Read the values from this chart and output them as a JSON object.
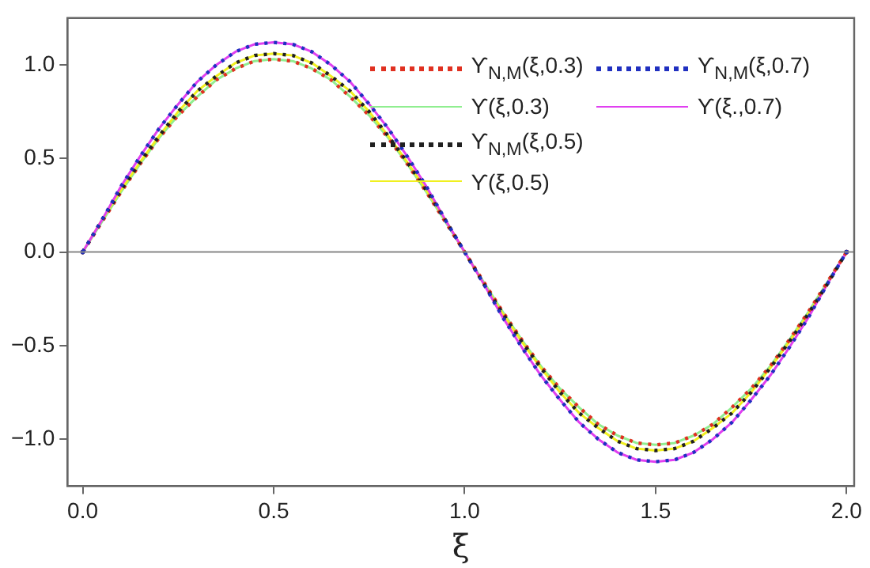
{
  "chart_data": {
    "type": "line",
    "xlabel": "ξ",
    "x": [
      0,
      0.05,
      0.1,
      0.15,
      0.2,
      0.25,
      0.3,
      0.35,
      0.4,
      0.45,
      0.5,
      0.55,
      0.6,
      0.65,
      0.7,
      0.75,
      0.8,
      0.85,
      0.9,
      0.95,
      1,
      1.05,
      1.1,
      1.15,
      1.2,
      1.25,
      1.3,
      1.35,
      1.4,
      1.45,
      1.5,
      1.55,
      1.6,
      1.65,
      1.7,
      1.75,
      1.8,
      1.85,
      1.9,
      1.95,
      2
    ],
    "series": [
      {
        "name": "ϒ$_{N,M}$(ξ,0.3)",
        "color": "#e03020",
        "line_style": "dotted",
        "values": [
          0,
          0.16,
          0.32,
          0.47,
          0.61,
          0.73,
          0.83,
          0.92,
          0.98,
          1.02,
          1.03,
          1.02,
          0.98,
          0.92,
          0.83,
          0.73,
          0.61,
          0.47,
          0.32,
          0.16,
          0,
          -0.16,
          -0.32,
          -0.47,
          -0.61,
          -0.73,
          -0.83,
          -0.92,
          -0.98,
          -1.02,
          -1.03,
          -1.02,
          -0.98,
          -0.92,
          -0.83,
          -0.73,
          -0.61,
          -0.47,
          -0.32,
          -0.16,
          0
        ]
      },
      {
        "name": "ϒ(ξ,0.3)",
        "color": "#90ee90",
        "line_style": "solid",
        "values": [
          0,
          0.16,
          0.32,
          0.47,
          0.61,
          0.73,
          0.83,
          0.92,
          0.98,
          1.02,
          1.03,
          1.02,
          0.98,
          0.92,
          0.83,
          0.73,
          0.61,
          0.47,
          0.32,
          0.16,
          0,
          -0.16,
          -0.32,
          -0.47,
          -0.61,
          -0.73,
          -0.83,
          -0.92,
          -0.98,
          -1.02,
          -1.03,
          -1.02,
          -0.98,
          -0.92,
          -0.83,
          -0.73,
          -0.61,
          -0.47,
          -0.32,
          -0.16,
          0
        ]
      },
      {
        "name": "ϒ$_{N,M}$(ξ,0.5)",
        "color": "#202020",
        "line_style": "dotted",
        "values": [
          0,
          0.17,
          0.33,
          0.48,
          0.62,
          0.75,
          0.86,
          0.94,
          1.01,
          1.05,
          1.06,
          1.05,
          1.01,
          0.94,
          0.86,
          0.75,
          0.62,
          0.48,
          0.33,
          0.17,
          0,
          -0.17,
          -0.33,
          -0.48,
          -0.62,
          -0.75,
          -0.86,
          -0.94,
          -1.01,
          -1.05,
          -1.06,
          -1.05,
          -1.01,
          -0.94,
          -0.86,
          -0.75,
          -0.62,
          -0.48,
          -0.33,
          -0.17,
          0
        ]
      },
      {
        "name": "ϒ(ξ,0.5)",
        "color": "#f0f020",
        "line_style": "solid",
        "values": [
          0,
          0.17,
          0.33,
          0.48,
          0.62,
          0.75,
          0.86,
          0.94,
          1.01,
          1.05,
          1.06,
          1.05,
          1.01,
          0.94,
          0.86,
          0.75,
          0.62,
          0.48,
          0.33,
          0.17,
          0,
          -0.17,
          -0.33,
          -0.48,
          -0.62,
          -0.75,
          -0.86,
          -0.94,
          -1.01,
          -1.05,
          -1.06,
          -1.05,
          -1.01,
          -0.94,
          -0.86,
          -0.75,
          -0.62,
          -0.48,
          -0.33,
          -0.17,
          0
        ]
      },
      {
        "name": "ϒ$_{N,M}$(ξ,0.7)",
        "color": "#2030c0",
        "line_style": "dotted",
        "values": [
          0,
          0.17,
          0.35,
          0.51,
          0.66,
          0.79,
          0.91,
          1.0,
          1.07,
          1.11,
          1.12,
          1.11,
          1.07,
          1.0,
          0.91,
          0.79,
          0.66,
          0.51,
          0.35,
          0.17,
          0,
          -0.17,
          -0.35,
          -0.51,
          -0.66,
          -0.79,
          -0.91,
          -1.0,
          -1.07,
          -1.11,
          -1.12,
          -1.11,
          -1.07,
          -1.0,
          -0.91,
          -0.79,
          -0.66,
          -0.51,
          -0.35,
          -0.17,
          0
        ]
      },
      {
        "name": "ϒ(ξ.,0.7)",
        "color": "#e040f0",
        "line_style": "solid",
        "values": [
          0,
          0.17,
          0.35,
          0.51,
          0.66,
          0.79,
          0.91,
          1.0,
          1.07,
          1.11,
          1.12,
          1.11,
          1.07,
          1.0,
          0.91,
          0.79,
          0.66,
          0.51,
          0.35,
          0.17,
          0,
          -0.17,
          -0.35,
          -0.51,
          -0.66,
          -0.79,
          -0.91,
          -1.0,
          -1.07,
          -1.11,
          -1.12,
          -1.11,
          -1.07,
          -1.0,
          -0.91,
          -0.79,
          -0.66,
          -0.51,
          -0.35,
          -0.17,
          0
        ]
      }
    ],
    "xlim": [
      -0.04,
      2.02
    ],
    "ylim": [
      -1.25,
      1.25
    ],
    "xticks": [
      {
        "value": 0,
        "label": "0.0"
      },
      {
        "value": 0.5,
        "label": "0.5"
      },
      {
        "value": 1,
        "label": "1.0"
      },
      {
        "value": 1.5,
        "label": "1.5"
      },
      {
        "value": 2,
        "label": "2.0"
      }
    ],
    "yticks": [
      {
        "value": -1,
        "label": "−1.0"
      },
      {
        "value": -0.5,
        "label": "−0.5"
      },
      {
        "value": 0,
        "label": "0.0"
      },
      {
        "value": 0.5,
        "label": "0.5"
      },
      {
        "value": 1,
        "label": "1.0"
      }
    ],
    "ref_lines": [
      {
        "axis": "y",
        "value": 0,
        "color": "#888888"
      }
    ],
    "grid": false,
    "legend": "top right"
  }
}
